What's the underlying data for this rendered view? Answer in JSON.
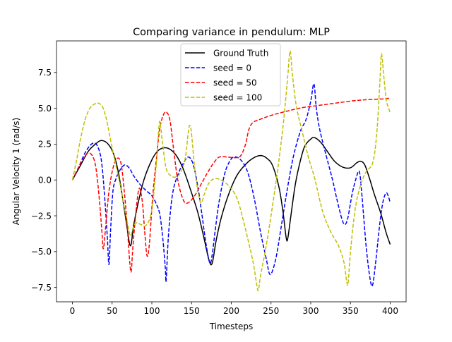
{
  "chart_data": {
    "type": "line",
    "title": "Comparing variance in pendulum: MLP",
    "xlabel": "Timesteps",
    "ylabel": "Angular Velocity 1 (rad/s)",
    "xlim": [
      -20,
      420
    ],
    "ylim": [
      -8.5,
      9.7
    ],
    "xticks": [
      0,
      50,
      100,
      150,
      200,
      250,
      300,
      350,
      400
    ],
    "xtick_labels": [
      "0",
      "50",
      "100",
      "150",
      "200",
      "250",
      "300",
      "350",
      "400"
    ],
    "yticks": [
      -7.5,
      -5.0,
      -2.5,
      0.0,
      2.5,
      5.0,
      7.5
    ],
    "ytick_labels": [
      "−7.5",
      "−5.0",
      "−2.5",
      "0.0",
      "2.5",
      "5.0",
      "7.5"
    ],
    "grid": false,
    "legend_position": "top-center",
    "series": [
      {
        "name": "Ground Truth",
        "color": "#000000",
        "dash": "solid",
        "points": [
          [
            0,
            0
          ],
          [
            10,
            1.0
          ],
          [
            20,
            2.0
          ],
          [
            30,
            2.55
          ],
          [
            37,
            2.75
          ],
          [
            45,
            2.5
          ],
          [
            52,
            1.8
          ],
          [
            58,
            0.5
          ],
          [
            63,
            -1.2
          ],
          [
            68,
            -3.0
          ],
          [
            73,
            -4.6
          ],
          [
            77,
            -3.2
          ],
          [
            82,
            -1.8
          ],
          [
            90,
            0.0
          ],
          [
            100,
            1.4
          ],
          [
            108,
            2.05
          ],
          [
            116,
            2.25
          ],
          [
            124,
            2.1
          ],
          [
            132,
            1.6
          ],
          [
            140,
            0.7
          ],
          [
            150,
            -0.9
          ],
          [
            158,
            -2.3
          ],
          [
            165,
            -3.9
          ],
          [
            172,
            -5.6
          ],
          [
            176,
            -5.8
          ],
          [
            181,
            -4.2
          ],
          [
            188,
            -2.5
          ],
          [
            198,
            -0.8
          ],
          [
            208,
            0.4
          ],
          [
            220,
            1.2
          ],
          [
            230,
            1.6
          ],
          [
            238,
            1.7
          ],
          [
            245,
            1.5
          ],
          [
            252,
            1.0
          ],
          [
            260,
            -0.5
          ],
          [
            265,
            -2.2
          ],
          [
            269,
            -4.0
          ],
          [
            271,
            -4.1
          ],
          [
            275,
            -2.5
          ],
          [
            280,
            -0.5
          ],
          [
            285,
            0.9
          ],
          [
            292,
            2.3
          ],
          [
            300,
            2.85
          ],
          [
            305,
            2.95
          ],
          [
            313,
            2.6
          ],
          [
            322,
            1.9
          ],
          [
            330,
            1.3
          ],
          [
            340,
            0.9
          ],
          [
            350,
            0.85
          ],
          [
            358,
            1.2
          ],
          [
            363,
            1.3
          ],
          [
            368,
            1.05
          ],
          [
            374,
            0.1
          ],
          [
            380,
            -1.0
          ],
          [
            388,
            -2.3
          ],
          [
            395,
            -3.7
          ],
          [
            400,
            -4.5
          ]
        ]
      },
      {
        "name": "seed = 0",
        "color": "#0000ff",
        "dash": "dashed",
        "points": [
          [
            0,
            0
          ],
          [
            8,
            0.9
          ],
          [
            16,
            1.9
          ],
          [
            24,
            2.5
          ],
          [
            30,
            2.5
          ],
          [
            35,
            1.8
          ],
          [
            38,
            0.6
          ],
          [
            41,
            -1.5
          ],
          [
            44,
            -4.0
          ],
          [
            46,
            -5.9
          ],
          [
            48,
            -3.6
          ],
          [
            51,
            -0.8
          ],
          [
            55,
            0.1
          ],
          [
            60,
            0.7
          ],
          [
            66,
            1.05
          ],
          [
            72,
            0.8
          ],
          [
            77,
            0.3
          ],
          [
            85,
            -0.3
          ],
          [
            92,
            -0.7
          ],
          [
            100,
            -1.1
          ],
          [
            105,
            -1.6
          ],
          [
            110,
            -2.4
          ],
          [
            114,
            -4.2
          ],
          [
            117,
            -6.2
          ],
          [
            118,
            -7.0
          ],
          [
            121,
            -3.8
          ],
          [
            126,
            -1.0
          ],
          [
            133,
            0.4
          ],
          [
            140,
            1.2
          ],
          [
            146,
            1.6
          ],
          [
            152,
            1.1
          ],
          [
            158,
            -0.5
          ],
          [
            163,
            -2.4
          ],
          [
            168,
            -4.4
          ],
          [
            173,
            -5.8
          ],
          [
            176,
            -5.2
          ],
          [
            180,
            -3.4
          ],
          [
            185,
            -1.4
          ],
          [
            192,
            0.5
          ],
          [
            198,
            1.3
          ],
          [
            203,
            1.6
          ],
          [
            210,
            1.5
          ],
          [
            218,
            0.9
          ],
          [
            224,
            -0.1
          ],
          [
            230,
            -1.6
          ],
          [
            237,
            -3.7
          ],
          [
            244,
            -5.5
          ],
          [
            249,
            -6.6
          ],
          [
            256,
            -5.5
          ],
          [
            263,
            -3.2
          ],
          [
            270,
            -0.8
          ],
          [
            278,
            1.6
          ],
          [
            287,
            3.4
          ],
          [
            294,
            4.2
          ],
          [
            300,
            5.5
          ],
          [
            304,
            6.7
          ],
          [
            307,
            5.0
          ],
          [
            311,
            3.6
          ],
          [
            318,
            2.0
          ],
          [
            327,
            0.1
          ],
          [
            334,
            -1.6
          ],
          [
            341,
            -3.0
          ],
          [
            346,
            -2.8
          ],
          [
            352,
            -1.0
          ],
          [
            357,
            0.1
          ],
          [
            361,
            0.6
          ],
          [
            364,
            -0.8
          ],
          [
            370,
            -4.8
          ],
          [
            375,
            -7.0
          ],
          [
            378,
            -7.3
          ],
          [
            382,
            -5.6
          ],
          [
            387,
            -3.0
          ],
          [
            391,
            -1.5
          ],
          [
            395,
            -0.9
          ],
          [
            398,
            -1.2
          ],
          [
            400,
            -1.6
          ]
        ]
      },
      {
        "name": "seed = 50",
        "color": "#ff0000",
        "dash": "dashed",
        "points": [
          [
            0,
            0
          ],
          [
            7,
            0.8
          ],
          [
            14,
            1.5
          ],
          [
            20,
            1.9
          ],
          [
            26,
            1.6
          ],
          [
            30,
            0.7
          ],
          [
            34,
            -1.4
          ],
          [
            37,
            -3.5
          ],
          [
            39,
            -4.8
          ],
          [
            42,
            -3.2
          ],
          [
            46,
            -0.8
          ],
          [
            51,
            0.8
          ],
          [
            56,
            1.5
          ],
          [
            61,
            1.2
          ],
          [
            65,
            -0.6
          ],
          [
            69,
            -3.2
          ],
          [
            72,
            -5.6
          ],
          [
            74,
            -6.4
          ],
          [
            76,
            -4.8
          ],
          [
            80,
            -2.2
          ],
          [
            84,
            -0.6
          ],
          [
            88,
            -1.5
          ],
          [
            91,
            -3.6
          ],
          [
            94,
            -5.3
          ],
          [
            97,
            -4.4
          ],
          [
            101,
            -1.2
          ],
          [
            106,
            1.6
          ],
          [
            110,
            3.6
          ],
          [
            115,
            4.6
          ],
          [
            119,
            4.7
          ],
          [
            123,
            4.1
          ],
          [
            127,
            2.3
          ],
          [
            132,
            0.2
          ],
          [
            137,
            -1.0
          ],
          [
            142,
            -1.6
          ],
          [
            148,
            -1.5
          ],
          [
            155,
            -1.0
          ],
          [
            162,
            -0.3
          ],
          [
            170,
            0.5
          ],
          [
            178,
            1.2
          ],
          [
            185,
            1.6
          ],
          [
            195,
            1.6
          ],
          [
            205,
            1.55
          ],
          [
            212,
            1.7
          ],
          [
            218,
            2.5
          ],
          [
            222,
            3.5
          ],
          [
            227,
            4.0
          ],
          [
            235,
            4.2
          ],
          [
            250,
            4.5
          ],
          [
            270,
            4.8
          ],
          [
            290,
            5.05
          ],
          [
            310,
            5.2
          ],
          [
            330,
            5.35
          ],
          [
            350,
            5.5
          ],
          [
            370,
            5.6
          ],
          [
            390,
            5.65
          ],
          [
            400,
            5.7
          ]
        ]
      },
      {
        "name": "seed = 100",
        "color": "#bfbf00",
        "dash": "dashed",
        "points": [
          [
            0,
            0
          ],
          [
            5,
            1.3
          ],
          [
            10,
            2.8
          ],
          [
            16,
            4.2
          ],
          [
            22,
            5.0
          ],
          [
            28,
            5.3
          ],
          [
            33,
            5.35
          ],
          [
            38,
            5.1
          ],
          [
            43,
            4.2
          ],
          [
            48,
            2.8
          ],
          [
            54,
            1.2
          ],
          [
            60,
            -0.3
          ],
          [
            65,
            -1.8
          ],
          [
            70,
            -3.2
          ],
          [
            73,
            -3.9
          ],
          [
            76,
            -3.4
          ],
          [
            80,
            -3.0
          ],
          [
            86,
            -3.1
          ],
          [
            92,
            -3.2
          ],
          [
            98,
            -2.6
          ],
          [
            102,
            -1.2
          ],
          [
            106,
            1.4
          ],
          [
            108,
            3.0
          ],
          [
            110,
            4.1
          ],
          [
            113,
            2.8
          ],
          [
            118,
            0.8
          ],
          [
            124,
            0.3
          ],
          [
            130,
            0.2
          ],
          [
            136,
            0.5
          ],
          [
            142,
            1.5
          ],
          [
            146,
            3.4
          ],
          [
            148,
            3.8
          ],
          [
            150,
            3.2
          ],
          [
            154,
            0.8
          ],
          [
            158,
            -0.8
          ],
          [
            162,
            -1.6
          ],
          [
            166,
            -1.0
          ],
          [
            172,
            -0.2
          ],
          [
            180,
            0.1
          ],
          [
            190,
            -0.1
          ],
          [
            200,
            -0.6
          ],
          [
            208,
            -1.4
          ],
          [
            215,
            -2.8
          ],
          [
            222,
            -4.4
          ],
          [
            228,
            -5.9
          ],
          [
            232,
            -7.3
          ],
          [
            234,
            -7.7
          ],
          [
            237,
            -6.6
          ],
          [
            242,
            -5.2
          ],
          [
            248,
            -3.2
          ],
          [
            254,
            -1.0
          ],
          [
            260,
            1.4
          ],
          [
            266,
            4.2
          ],
          [
            271,
            7.2
          ],
          [
            274,
            9.0
          ],
          [
            277,
            7.3
          ],
          [
            282,
            5.1
          ],
          [
            290,
            3.2
          ],
          [
            297,
            1.6
          ],
          [
            305,
            0.1
          ],
          [
            315,
            -2.2
          ],
          [
            325,
            -3.6
          ],
          [
            335,
            -4.6
          ],
          [
            342,
            -5.8
          ],
          [
            345,
            -7.0
          ],
          [
            347,
            -7.2
          ],
          [
            350,
            -5.0
          ],
          [
            356,
            -2.0
          ],
          [
            363,
            -0.3
          ],
          [
            370,
            0.6
          ],
          [
            378,
            1.2
          ],
          [
            383,
            3.2
          ],
          [
            387,
            6.8
          ],
          [
            389,
            8.8
          ],
          [
            392,
            7.2
          ],
          [
            395,
            5.6
          ],
          [
            398,
            5.0
          ],
          [
            400,
            4.7
          ]
        ]
      }
    ]
  }
}
